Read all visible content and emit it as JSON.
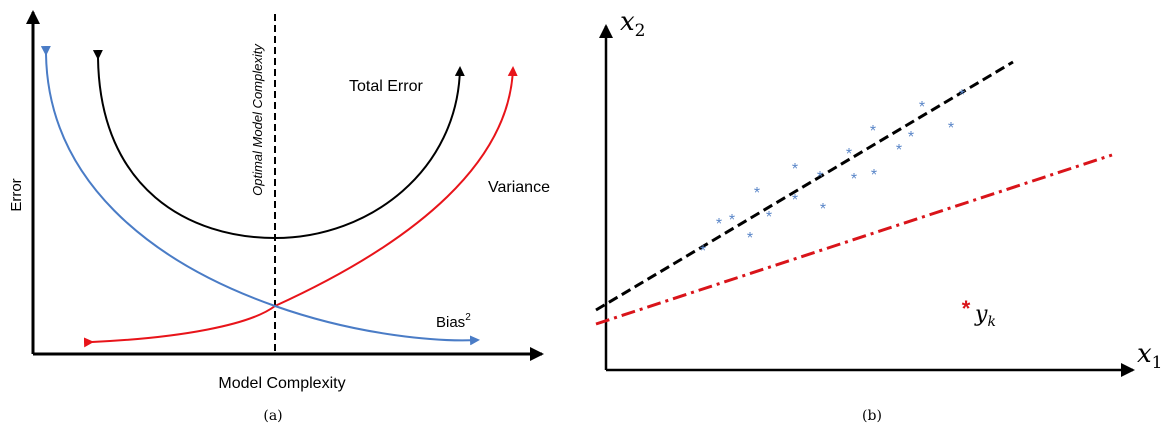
{
  "panel_a": {
    "caption": "(a)",
    "y_axis_label": "Error",
    "x_axis_label": "Model Complexity",
    "optimal_label": "Optimal Model Complexity",
    "total_error_label": "Total Error",
    "variance_label": "Variance",
    "bias_label": "Bias",
    "bias_superscript": "2",
    "colors": {
      "total_error": "#000000",
      "variance": "#e8141a",
      "bias": "#4a7cc6",
      "axis": "#000000"
    }
  },
  "panel_b": {
    "caption": "(b)",
    "x_axis_label": "x",
    "x_axis_sub": "1",
    "y_axis_label": "x",
    "y_axis_sub": "2",
    "outlier_marker": "*",
    "outlier_label": "y",
    "outlier_sub": "k",
    "colors": {
      "points": "#5a86c8",
      "fit_line": "#000000",
      "robust_line": "#d9141a",
      "outlier": "#d9141a"
    }
  }
}
